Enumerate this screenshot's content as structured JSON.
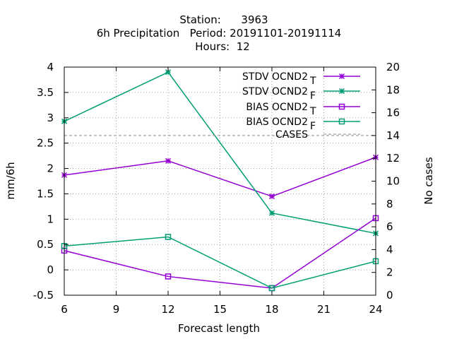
{
  "chart_data": {
    "type": "line",
    "title_lines": [
      "Station:      3963",
      "6h Precipitation   Period: 20191101-20191114",
      "Hours:  12"
    ],
    "xlabel": "Forecast length",
    "ylabel": "mm/6h",
    "y2label": "No cases",
    "x_ticks": [
      6,
      9,
      12,
      15,
      18,
      21,
      24
    ],
    "y_ticks": [
      "-0.5",
      "0",
      "0.5",
      "1",
      "1.5",
      "2",
      "2.5",
      "3",
      "3.5",
      "4"
    ],
    "y2_ticks": [
      "0",
      "2",
      "4",
      "6",
      "8",
      "10",
      "12",
      "14",
      "16",
      "18",
      "20"
    ],
    "xlim": [
      6,
      24
    ],
    "ylim": [
      -0.5,
      4
    ],
    "y2lim": [
      0,
      20
    ],
    "grid": true,
    "legend_position": "top-right",
    "x": [
      6,
      12,
      18,
      24
    ],
    "series": [
      {
        "name": "STDV OCND2",
        "subscript": "T",
        "marker": "x-star",
        "color": "#9400d3",
        "values": [
          1.87,
          2.15,
          1.45,
          2.22
        ]
      },
      {
        "name": "STDV OCND2",
        "subscript": "F",
        "marker": "x-star",
        "color": "#009e73",
        "values": [
          2.93,
          3.9,
          1.12,
          0.72
        ]
      },
      {
        "name": "BIAS OCND2",
        "subscript": "T",
        "marker": "square",
        "color": "#9400d3",
        "values": [
          0.38,
          -0.13,
          -0.36,
          1.02
        ]
      },
      {
        "name": "BIAS OCND2",
        "subscript": "F",
        "marker": "square",
        "color": "#009e73",
        "values": [
          0.47,
          0.65,
          -0.36,
          0.17
        ]
      },
      {
        "name": "CASES",
        "marker": "none",
        "color": "#a0a0a0",
        "dashed": true,
        "axis": "y2",
        "values": [
          14,
          14,
          14,
          14
        ]
      }
    ]
  }
}
